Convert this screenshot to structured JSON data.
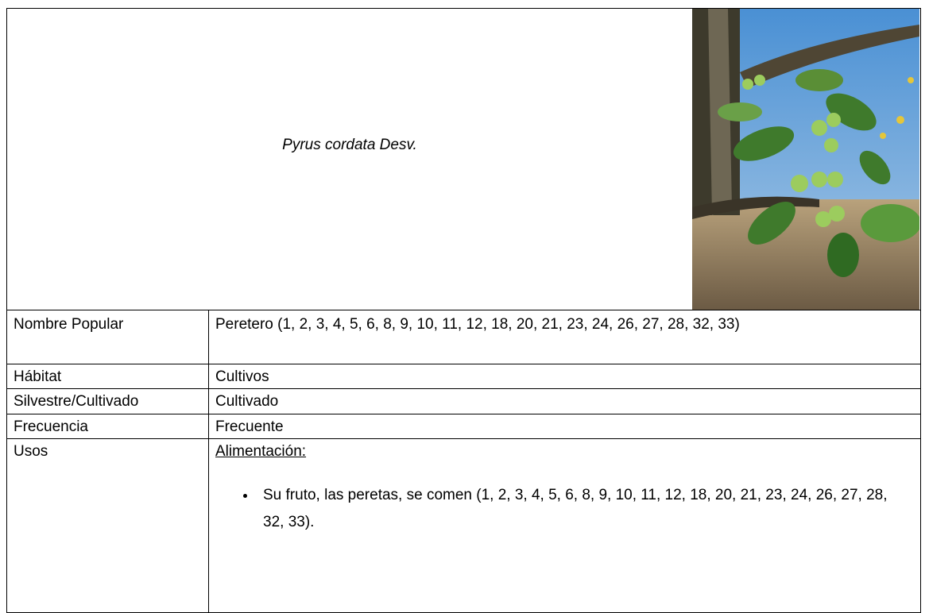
{
  "header": {
    "title": "Pyrus cordata Desv."
  },
  "table": {
    "rows": [
      [
        "Nombre Popular",
        "Peretero (1, 2, 3, 4, 5, 6, 8, 9, 10, 11, 12, 18, 20, 21, 23, 24, 26, 27, 28, 32, 33)"
      ],
      [
        "Hábitat",
        "Cultivos"
      ],
      [
        "Silvestre/Cultivado",
        "Cultivado"
      ],
      [
        "Frecuencia",
        "Frecuente"
      ]
    ]
  },
  "usos": {
    "label": "Usos",
    "heading": "Alimentación:",
    "bullets": [
      "Su fruto, las peretas, se comen (1, 2, 3, 4, 5, 6, 8, 9, 10, 11, 12, 18, 20, 21, 23, 24, 26, 27, 28, 32, 33)."
    ]
  }
}
